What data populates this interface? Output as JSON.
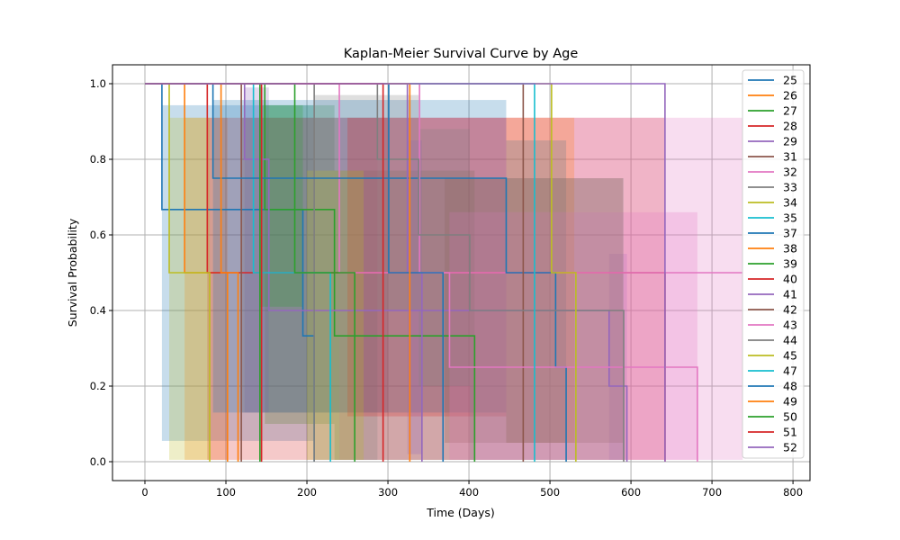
{
  "chart_data": {
    "type": "line",
    "title": "Kaplan-Meier Survival Curve by Age",
    "xlabel": "Time (Days)",
    "ylabel": "Survival Probability",
    "xlim": [
      -40,
      821
    ],
    "ylim": [
      -0.05,
      1.05
    ],
    "xticks": [
      0,
      100,
      200,
      300,
      400,
      500,
      600,
      700,
      800
    ],
    "xtick_labels": [
      "0",
      "100",
      "200",
      "300",
      "400",
      "500",
      "600",
      "700",
      "800"
    ],
    "yticks": [
      0.0,
      0.2,
      0.4,
      0.6,
      0.8,
      1.0
    ],
    "ytick_labels": [
      "0.0",
      "0.2",
      "0.4",
      "0.6",
      "0.8",
      "1.0"
    ],
    "grid": true,
    "legend_placement": "right",
    "series": [
      {
        "name": "25",
        "color": "#1f77b4",
        "steps": [
          [
            21,
            0.667
          ],
          [
            195,
            0.333
          ],
          [
            209,
            0
          ]
        ],
        "end": 209,
        "ci": [
          [
            21,
            209,
            0.055,
            0.943
          ]
        ]
      },
      {
        "name": "26",
        "color": "#ff7f0e",
        "steps": [
          [
            49,
            0.5
          ],
          [
            102,
            0
          ]
        ],
        "end": 102,
        "ci": [
          [
            49,
            102,
            0.005,
            0.91
          ]
        ]
      },
      {
        "name": "27",
        "color": "#2ca02c",
        "steps": [
          [
            148,
            0.667
          ],
          [
            234,
            0.333
          ],
          [
            407,
            0
          ]
        ],
        "end": 407,
        "ci": [
          [
            148,
            234,
            0.1,
            0.943
          ],
          [
            234,
            407,
            0.005,
            0.77
          ]
        ]
      },
      {
        "name": "28",
        "color": "#d62728",
        "steps": [
          [
            77,
            0.5
          ],
          [
            642,
            0
          ]
        ],
        "end": 642,
        "ci": [
          [
            77,
            642,
            0.005,
            0.91
          ]
        ]
      },
      {
        "name": "29",
        "color": "#9467bd",
        "steps": [
          [
            123,
            0.8
          ],
          [
            153,
            0.4
          ],
          [
            573,
            0.2
          ],
          [
            595,
            0
          ]
        ],
        "end": 595,
        "ci": [
          [
            123,
            153,
            0.13,
            0.99
          ],
          [
            573,
            595,
            0.005,
            0.55
          ]
        ]
      },
      {
        "name": "31",
        "color": "#8c564b",
        "steps": [
          [
            119,
            0
          ]
        ],
        "end": 119,
        "ci": [
          [
            119,
            300,
            0.13,
            0.91
          ]
        ]
      },
      {
        "name": "32",
        "color": "#e377c2",
        "steps": [
          [
            240,
            0.5
          ]
        ],
        "end": 738,
        "ci": [
          [
            240,
            738,
            0.005,
            0.91
          ]
        ]
      },
      {
        "name": "33",
        "color": "#7f7f7f",
        "steps": [
          [
            209,
            0
          ]
        ],
        "end": 209,
        "ci": [
          [
            209,
            287,
            0.005,
            0.97
          ]
        ]
      },
      {
        "name": "34",
        "color": "#bcbd22",
        "steps": [
          [
            30,
            0.5
          ],
          [
            80,
            0
          ]
        ],
        "end": 80,
        "ci": [
          [
            30,
            80,
            0.005,
            0.91
          ]
        ]
      },
      {
        "name": "35",
        "color": "#17becf",
        "steps": [
          [
            134,
            0.5
          ],
          [
            229,
            0
          ]
        ],
        "end": 229,
        "ci": []
      },
      {
        "name": "37",
        "color": "#1f77b4",
        "steps": [
          [
            84,
            0.75
          ],
          [
            446,
            0.5
          ],
          [
            507,
            0.25
          ],
          [
            520,
            0
          ]
        ],
        "end": 520,
        "ci": [
          [
            84,
            446,
            0.13,
            0.957
          ],
          [
            446,
            520,
            0.05,
            0.85
          ]
        ]
      },
      {
        "name": "38",
        "color": "#ff7f0e",
        "steps": [
          [
            94,
            0.5
          ],
          [
            115,
            0
          ]
        ],
        "end": 115,
        "ci": [
          [
            446,
            530,
            0.05,
            0.91
          ]
        ]
      },
      {
        "name": "39",
        "color": "#2ca02c",
        "steps": [
          [
            142,
            0
          ]
        ],
        "end": 142,
        "ci": [
          [
            142,
            195,
            0.41,
            0.943
          ]
        ]
      },
      {
        "name": "40",
        "color": "#d62728",
        "steps": [
          [
            144,
            0
          ]
        ],
        "end": 144,
        "ci": [
          [
            250,
            446,
            0.12,
            0.91
          ]
        ]
      },
      {
        "name": "41",
        "color": "#9467bd",
        "steps": [
          [
            324,
            0.5
          ],
          [
            342,
            0
          ]
        ],
        "end": 342,
        "ci": [
          [
            324,
            342,
            0.02,
            0.85
          ]
        ]
      },
      {
        "name": "42",
        "color": "#8c564b",
        "steps": [
          [
            467,
            0
          ]
        ],
        "end": 467,
        "ci": [
          [
            370,
            590,
            0.05,
            0.75
          ]
        ]
      },
      {
        "name": "43",
        "color": "#e377c2",
        "steps": [
          [
            339,
            0.5
          ],
          [
            376,
            0.25
          ],
          [
            682,
            0
          ]
        ],
        "end": 682,
        "ci": [
          [
            376,
            682,
            0.005,
            0.66
          ]
        ]
      },
      {
        "name": "44",
        "color": "#7f7f7f",
        "steps": [
          [
            287,
            0.8
          ],
          [
            338,
            0.6
          ],
          [
            401,
            0.4
          ],
          [
            591,
            0
          ]
        ],
        "end": 591,
        "ci": [
          [
            287,
            338,
            0.4,
            0.97
          ],
          [
            338,
            401,
            0.2,
            0.88
          ],
          [
            401,
            591,
            0.005,
            0.75
          ]
        ]
      },
      {
        "name": "45",
        "color": "#bcbd22",
        "steps": [
          [
            502,
            0.5
          ],
          [
            532,
            0
          ]
        ],
        "end": 532,
        "ci": [
          [
            200,
            270,
            0.005,
            0.77
          ]
        ]
      },
      {
        "name": "47",
        "color": "#17becf",
        "steps": [
          [
            481,
            0
          ]
        ],
        "end": 481,
        "ci": []
      },
      {
        "name": "48",
        "color": "#1f77b4",
        "steps": [
          [
            301,
            0.5
          ],
          [
            368,
            0
          ]
        ],
        "end": 368,
        "ci": []
      },
      {
        "name": "49",
        "color": "#ff7f0e",
        "steps": [
          [
            327,
            0
          ]
        ],
        "end": 327,
        "ci": []
      },
      {
        "name": "50",
        "color": "#2ca02c",
        "steps": [
          [
            185,
            0.5
          ],
          [
            259,
            0
          ]
        ],
        "end": 259,
        "ci": []
      },
      {
        "name": "51",
        "color": "#d62728",
        "steps": [
          [
            294,
            0
          ]
        ],
        "end": 294,
        "ci": []
      },
      {
        "name": "52",
        "color": "#9467bd",
        "steps": [
          [
            642,
            0
          ]
        ],
        "end": 642,
        "ci": []
      }
    ]
  }
}
